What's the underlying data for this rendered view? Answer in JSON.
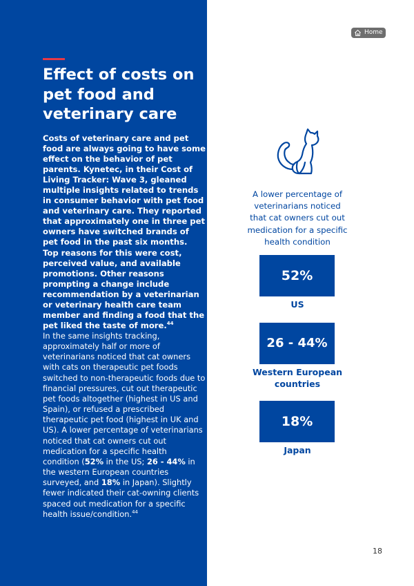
{
  "nav": {
    "home_label": "Home"
  },
  "title": "Effect of costs on pet food and veterinary care",
  "lead": "Costs of veterinary care and pet food are always going to have some effect on the behavior of pet parents. Kynetec, in their Cost of Living Tracker: Wave 3, gleaned multiple insights related to trends in consumer behavior with pet food and veterinary care. They reported that approximately one in three pet owners have switched brands of pet food in the past six months. Top reasons for this were cost, perceived value, and available promotions. Other reasons prompting a change include recommendation by a veterinarian or veterinary health care team member and finding a food that the pet liked the taste of more.",
  "lead_ref": "44",
  "body": {
    "t1": "In the same insights tracking, approximately half or more of veterinarians noticed that cat owners with cats on therapeutic pet foods switched to non-therapeutic foods due to financial pressures, cut out therapeutic pet foods altogether (highest in US and Spain), or refused a prescribed therapeutic pet food (highest in UK and US). A lower percentage of veterinarians noticed that cat owners cut out medication for a specific health condition (",
    "b1": "52%",
    "t2": " in the US; ",
    "b2": "26 - 44%",
    "t3": " in the western European countries surveyed, and ",
    "b3": "18%",
    "t4": " in Japan). Slightly fewer indicated their cat-owning clients spaced out medication for a specific health issue/condition.",
    "ref": "44"
  },
  "infographic": {
    "icon": "cat-icon",
    "intro": "A lower percentage of veterinarians noticed that cat owners cut out medication for a specific health condition",
    "stats": [
      {
        "value": "52%",
        "label": "US"
      },
      {
        "value": "26 - 44%",
        "label": "Western European countries"
      },
      {
        "value": "18%",
        "label": "Japan"
      }
    ]
  },
  "page_number": "18",
  "colors": {
    "brand_blue": "#0046a0",
    "accent_red": "#e63946",
    "home_button": "#6e6e6e"
  }
}
